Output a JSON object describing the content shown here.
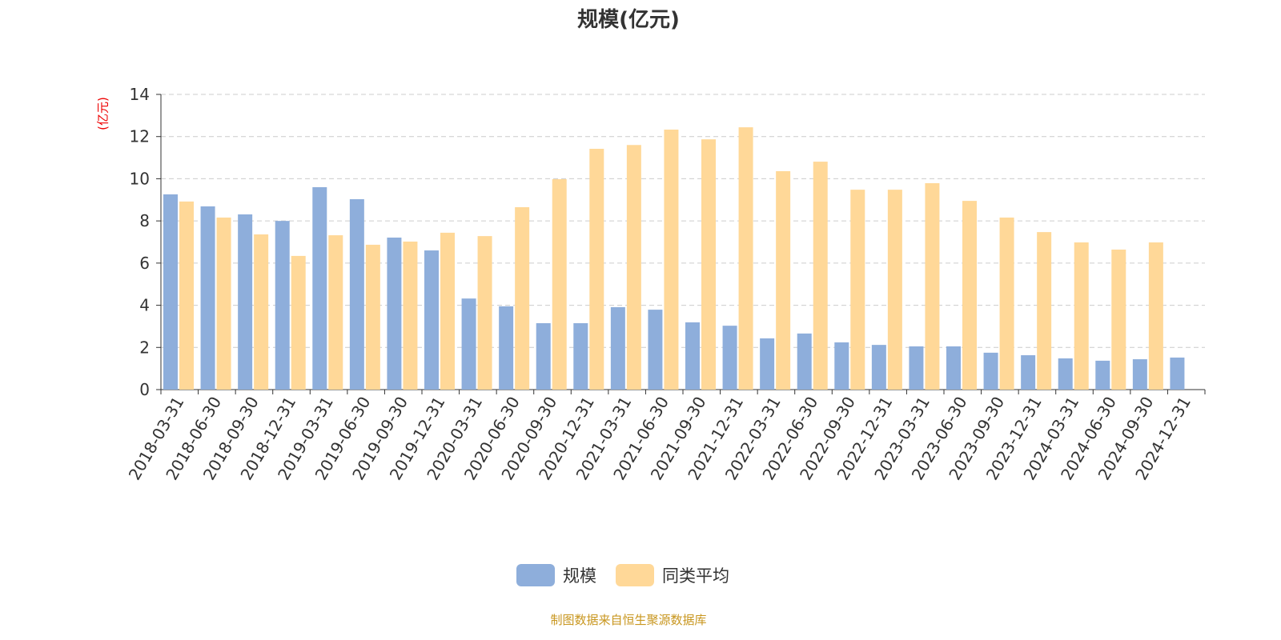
{
  "chart_data": {
    "type": "bar",
    "title": "规模(亿元)",
    "ylabel": "(亿元)",
    "xlabel": "",
    "ylim": [
      0,
      14
    ],
    "yticks": [
      0,
      2,
      4,
      6,
      8,
      10,
      12,
      14
    ],
    "grid": true,
    "legend_position": "bottom",
    "categories": [
      "2018-03-31",
      "2018-06-30",
      "2018-09-30",
      "2018-12-31",
      "2019-03-31",
      "2019-06-30",
      "2019-09-30",
      "2019-12-31",
      "2020-03-31",
      "2020-06-30",
      "2020-09-30",
      "2020-12-31",
      "2021-03-31",
      "2021-06-30",
      "2021-09-30",
      "2021-12-31",
      "2022-03-31",
      "2022-06-30",
      "2022-09-30",
      "2022-12-31",
      "2023-03-31",
      "2023-06-30",
      "2023-09-30",
      "2023-12-31",
      "2024-03-31",
      "2024-06-30",
      "2024-09-30",
      "2024-12-31"
    ],
    "series": [
      {
        "name": "规模",
        "color": "#8eaedb",
        "values": [
          9.26,
          8.69,
          8.31,
          8.0,
          9.6,
          9.03,
          7.21,
          6.6,
          4.32,
          3.95,
          3.15,
          3.15,
          3.91,
          3.79,
          3.19,
          3.03,
          2.43,
          2.66,
          2.24,
          2.12,
          2.05,
          2.05,
          1.75,
          1.63,
          1.48,
          1.37,
          1.44,
          1.52
        ]
      },
      {
        "name": "同类平均",
        "color": "#ffd898",
        "values": [
          8.92,
          8.16,
          7.36,
          6.34,
          7.32,
          6.87,
          7.02,
          7.44,
          7.28,
          8.65,
          9.98,
          11.42,
          11.6,
          12.33,
          11.87,
          12.44,
          10.36,
          10.81,
          9.48,
          9.48,
          9.79,
          8.95,
          8.16,
          7.47,
          6.98,
          6.64,
          6.98,
          null
        ]
      }
    ]
  },
  "footer": "制图数据来自恒生聚源数据库"
}
